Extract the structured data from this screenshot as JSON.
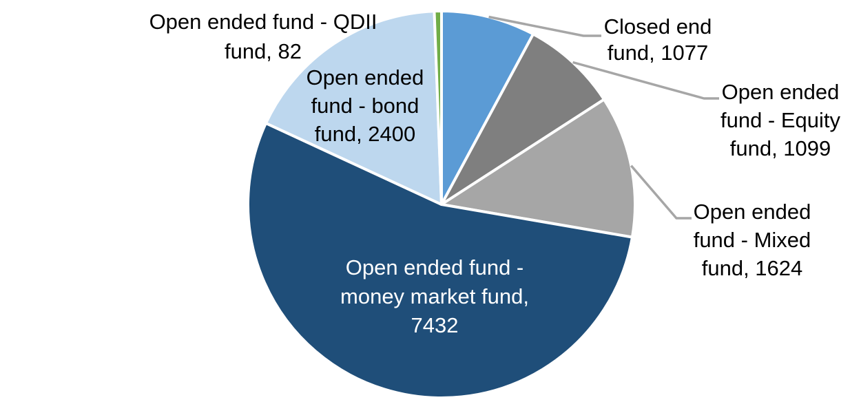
{
  "chart_data": {
    "type": "pie",
    "title": "",
    "total": 13714,
    "start_angle_deg": 0,
    "direction": "clockwise",
    "background_color": "#FFFFFF",
    "separator_color": "#FFFFFF",
    "leader_line_color": "#A6A6A6",
    "label_text_color": "#000000",
    "slices": [
      {
        "id": "closed-end-fund",
        "label": "Closed end fund",
        "value": 1077,
        "color": "#5B9BD5",
        "label_lines": [
          "Closed end",
          "fund, 1077"
        ],
        "label_placement": "outside",
        "label_color": "#000000",
        "leader_line": true
      },
      {
        "id": "open-ended-fund-equity",
        "label": "Open ended fund - Equity fund",
        "value": 1099,
        "color": "#7F7F7F",
        "label_lines": [
          "Open ended",
          "fund - Equity",
          "fund, 1099"
        ],
        "label_placement": "outside",
        "label_color": "#000000",
        "leader_line": true
      },
      {
        "id": "open-ended-fund-mixed",
        "label": "Open ended fund - Mixed fund",
        "value": 1624,
        "color": "#A6A6A6",
        "label_lines": [
          "Open ended",
          "fund - Mixed",
          "fund, 1624"
        ],
        "label_placement": "outside",
        "label_color": "#000000",
        "leader_line": true
      },
      {
        "id": "open-ended-fund-money-market",
        "label": "Open ended fund - money market fund",
        "value": 7432,
        "color": "#1F4E79",
        "label_lines": [
          "Open ended fund -",
          "money market fund,",
          "7432"
        ],
        "label_placement": "inside",
        "label_color": "#FFFFFF",
        "leader_line": false
      },
      {
        "id": "open-ended-fund-bond",
        "label": "Open ended fund - bond fund",
        "value": 2400,
        "color": "#BDD7EE",
        "label_lines": [
          "Open ended",
          "fund - bond",
          "fund, 2400"
        ],
        "label_placement": "inside",
        "label_color": "#000000",
        "leader_line": false
      },
      {
        "id": "open-ended-fund-qdii",
        "label": "Open ended fund - QDII fund",
        "value": 82,
        "color": "#70AD47",
        "label_lines": [
          "Open ended fund - QDII",
          "fund, 82"
        ],
        "label_placement": "outside",
        "label_color": "#000000",
        "leader_line": false
      }
    ]
  }
}
